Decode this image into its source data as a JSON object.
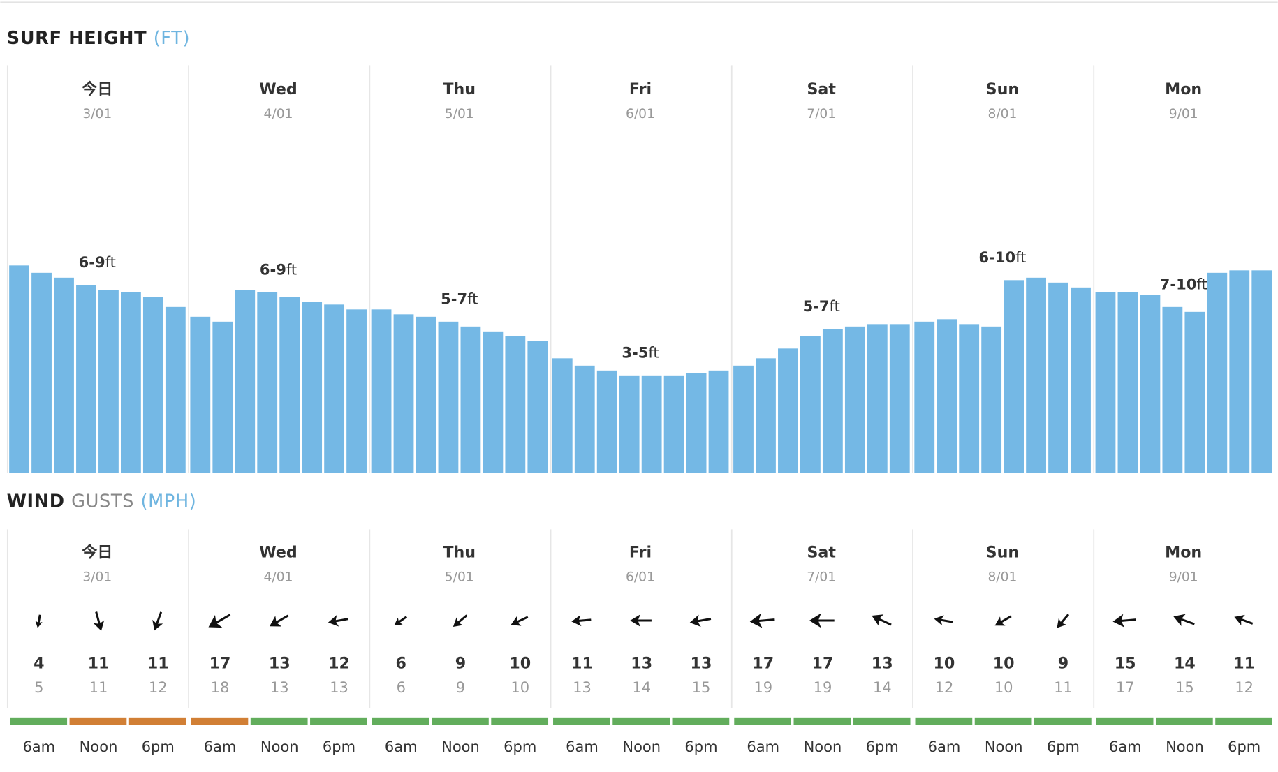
{
  "chart_data": [
    {
      "type": "bar",
      "title": "SURF HEIGHT",
      "unit": "(FT)",
      "range_suffix": "ft",
      "color": "#74b8e5",
      "ylim": [
        0,
        16.7
      ],
      "days": [
        {
          "name": "今日",
          "date": "3/01",
          "range": "6-9",
          "values": [
            8.5,
            8.2,
            8.0,
            7.7,
            7.5,
            7.4,
            7.2,
            6.8
          ]
        },
        {
          "name": "Wed",
          "date": "4/01",
          "range": "6-9",
          "values": [
            6.4,
            6.2,
            7.5,
            7.4,
            7.2,
            7.0,
            6.9,
            6.7
          ]
        },
        {
          "name": "Thu",
          "date": "5/01",
          "range": "5-7",
          "values": [
            6.7,
            6.5,
            6.4,
            6.2,
            6.0,
            5.8,
            5.6,
            5.4
          ]
        },
        {
          "name": "Fri",
          "date": "6/01",
          "range": "3-5",
          "values": [
            4.7,
            4.4,
            4.2,
            4.0,
            4.0,
            4.0,
            4.1,
            4.2
          ]
        },
        {
          "name": "Sat",
          "date": "7/01",
          "range": "5-7",
          "values": [
            4.4,
            4.7,
            5.1,
            5.6,
            5.9,
            6.0,
            6.1,
            6.1
          ]
        },
        {
          "name": "Sun",
          "date": "8/01",
          "range": "6-10",
          "values": [
            6.2,
            6.3,
            6.1,
            6.0,
            7.9,
            8.0,
            7.8,
            7.6
          ]
        },
        {
          "name": "Mon",
          "date": "9/01",
          "range": "7-10",
          "values": [
            7.4,
            7.4,
            7.3,
            6.8,
            6.6,
            8.2,
            8.3,
            8.3
          ]
        }
      ]
    },
    {
      "type": "wind",
      "title": "WIND",
      "subtitle": "GUSTS",
      "unit": "(MPH)",
      "times": [
        "6am",
        "Noon",
        "6pm"
      ],
      "days": [
        {
          "name": "今日",
          "date": "3/01",
          "slots": [
            {
              "direction": 190,
              "speed": 4,
              "gust": 5,
              "color": "#62ad5c"
            },
            {
              "direction": 165,
              "speed": 11,
              "gust": 11,
              "color": "#d17f35"
            },
            {
              "direction": 200,
              "speed": 11,
              "gust": 12,
              "color": "#d17f35"
            }
          ]
        },
        {
          "name": "Wed",
          "date": "4/01",
          "slots": [
            {
              "direction": 240,
              "speed": 17,
              "gust": 18,
              "color": "#d17f35"
            },
            {
              "direction": 240,
              "speed": 13,
              "gust": 13,
              "color": "#62ad5c"
            },
            {
              "direction": 260,
              "speed": 12,
              "gust": 13,
              "color": "#62ad5c"
            }
          ]
        },
        {
          "name": "Thu",
          "date": "5/01",
          "slots": [
            {
              "direction": 235,
              "speed": 6,
              "gust": 6,
              "color": "#62ad5c"
            },
            {
              "direction": 230,
              "speed": 9,
              "gust": 9,
              "color": "#62ad5c"
            },
            {
              "direction": 245,
              "speed": 10,
              "gust": 10,
              "color": "#62ad5c"
            }
          ]
        },
        {
          "name": "Fri",
          "date": "6/01",
          "slots": [
            {
              "direction": 265,
              "speed": 11,
              "gust": 13,
              "color": "#62ad5c"
            },
            {
              "direction": 270,
              "speed": 13,
              "gust": 14,
              "color": "#62ad5c"
            },
            {
              "direction": 260,
              "speed": 13,
              "gust": 15,
              "color": "#62ad5c"
            }
          ]
        },
        {
          "name": "Sat",
          "date": "7/01",
          "slots": [
            {
              "direction": 265,
              "speed": 17,
              "gust": 19,
              "color": "#62ad5c"
            },
            {
              "direction": 270,
              "speed": 17,
              "gust": 19,
              "color": "#62ad5c"
            },
            {
              "direction": 295,
              "speed": 13,
              "gust": 14,
              "color": "#62ad5c"
            }
          ]
        },
        {
          "name": "Sun",
          "date": "8/01",
          "slots": [
            {
              "direction": 280,
              "speed": 10,
              "gust": 12,
              "color": "#62ad5c"
            },
            {
              "direction": 240,
              "speed": 10,
              "gust": 10,
              "color": "#62ad5c"
            },
            {
              "direction": 220,
              "speed": 9,
              "gust": 11,
              "color": "#62ad5c"
            }
          ]
        },
        {
          "name": "Mon",
          "date": "9/01",
          "slots": [
            {
              "direction": 265,
              "speed": 15,
              "gust": 17,
              "color": "#62ad5c"
            },
            {
              "direction": 290,
              "speed": 14,
              "gust": 15,
              "color": "#62ad5c"
            },
            {
              "direction": 290,
              "speed": 11,
              "gust": 12,
              "color": "#62ad5c"
            }
          ]
        }
      ]
    }
  ]
}
